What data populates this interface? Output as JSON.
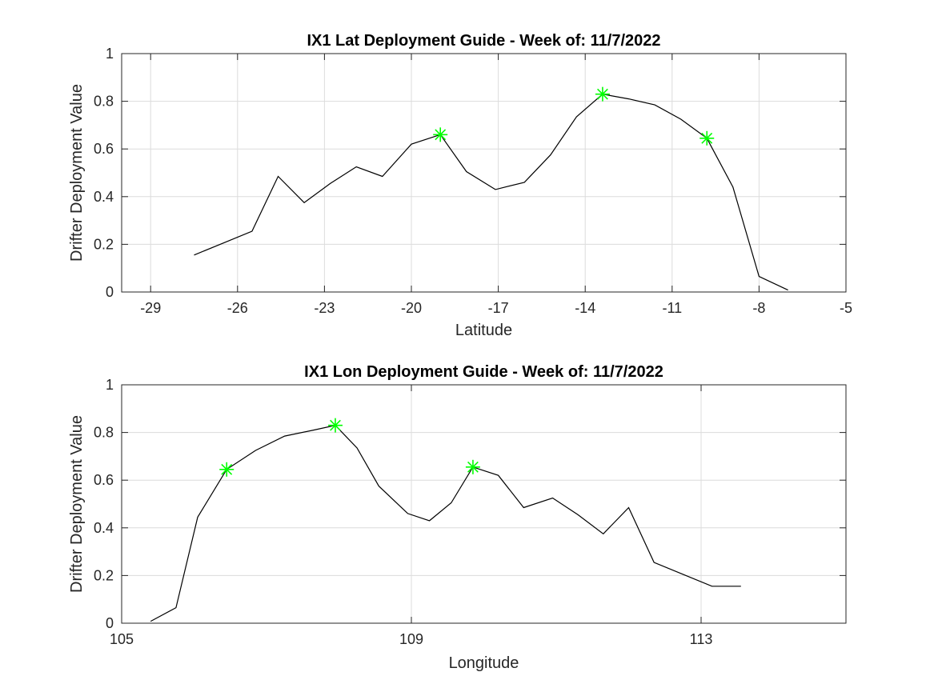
{
  "chart_data": [
    {
      "type": "line",
      "title": "IX1 Lat Deployment Guide - Week of: 11/7/2022",
      "xlabel": "Latitude",
      "ylabel": "Drifter Deployment Value",
      "xlim": [
        -30,
        -5
      ],
      "ylim": [
        0,
        1
      ],
      "xticks": [
        -29,
        -26,
        -23,
        -20,
        -17,
        -14,
        -11,
        -8,
        -5
      ],
      "yticks": [
        0,
        0.2,
        0.4,
        0.6,
        0.8,
        1
      ],
      "grid": true,
      "line_color": "#000000",
      "marker_color": "#00ff00",
      "series": [
        {
          "x": [
            -27.5,
            -26.5,
            -25.5,
            -24.6,
            -23.7,
            -22.8,
            -21.9,
            -21.0,
            -20.0,
            -19.0,
            -18.1,
            -17.1,
            -16.1,
            -15.2,
            -14.3,
            -13.4,
            -12.5,
            -11.6,
            -10.7,
            -9.8,
            -8.9,
            -8.0,
            -7.0
          ],
          "y": [
            0.155,
            0.205,
            0.255,
            0.485,
            0.375,
            0.455,
            0.525,
            0.485,
            0.62,
            0.66,
            0.505,
            0.43,
            0.46,
            0.575,
            0.735,
            0.83,
            0.81,
            0.785,
            0.725,
            0.645,
            0.44,
            0.065,
            0.008
          ]
        }
      ],
      "markers": {
        "x": [
          -19.0,
          -13.4,
          -9.8
        ],
        "y": [
          0.66,
          0.83,
          0.645
        ]
      }
    },
    {
      "type": "line",
      "title": "IX1 Lon Deployment Guide - Week of: 11/7/2022",
      "xlabel": "Longitude",
      "ylabel": "Drifter Deployment Value",
      "xlim": [
        105,
        115
      ],
      "ylim": [
        0,
        1
      ],
      "xticks": [
        105,
        109,
        113
      ],
      "yticks": [
        0,
        0.2,
        0.4,
        0.6,
        0.8,
        1
      ],
      "grid": true,
      "line_color": "#000000",
      "marker_color": "#00ff00",
      "series": [
        {
          "x": [
            105.4,
            105.75,
            106.05,
            106.45,
            106.85,
            107.25,
            107.65,
            107.95,
            108.25,
            108.55,
            108.95,
            109.25,
            109.55,
            109.85,
            110.2,
            110.55,
            110.95,
            111.3,
            111.65,
            112.0,
            112.35,
            112.75,
            113.15,
            113.55
          ],
          "y": [
            0.008,
            0.065,
            0.445,
            0.645,
            0.725,
            0.785,
            0.81,
            0.83,
            0.735,
            0.575,
            0.46,
            0.43,
            0.505,
            0.655,
            0.62,
            0.485,
            0.525,
            0.455,
            0.375,
            0.485,
            0.255,
            0.205,
            0.155,
            0.155
          ]
        }
      ],
      "markers": {
        "x": [
          106.45,
          107.95,
          109.85
        ],
        "y": [
          0.645,
          0.83,
          0.655
        ]
      }
    }
  ]
}
